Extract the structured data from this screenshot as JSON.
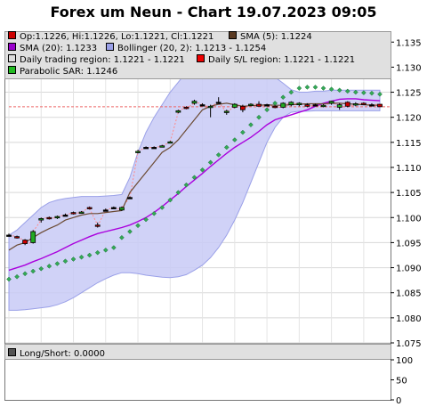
{
  "title": "Forex um Neun - Chart 19.07.2023 09:05",
  "legend": [
    {
      "label": "Op:1.1226, Hi:1.1226, Lo:1.1221, Cl:1.1221",
      "color": "#cc0000"
    },
    {
      "label": "SMA (5): 1.1224",
      "color": "#5a3a22"
    },
    {
      "label": "SMA (20): 1.1233",
      "color": "#9900cc"
    },
    {
      "label": "Bollinger (20, 2): 1.1213 - 1.1254",
      "color": "#9aa0e8"
    },
    {
      "label": "Daily trading region: 1.1221 - 1.1221",
      "color": "#dddddd"
    },
    {
      "label": "Daily S/L region: 1.1221 - 1.1221",
      "color": "#ee0000"
    },
    {
      "label": "Parabolic SAR: 1.1246",
      "color": "#22bb22"
    }
  ],
  "lower_panel": {
    "legend_label": "Long/Short: 0.0000",
    "legend_color": "#555555",
    "y_ticks": [
      "100",
      "50",
      "0"
    ],
    "ylim": [
      0,
      100
    ],
    "value": 0
  },
  "chart_data": {
    "type": "candlestick",
    "title": "Forex um Neun - Chart 19.07.2023 09:05",
    "ylim": [
      1.075,
      1.137
    ],
    "y_ticks": [
      "1.135",
      "1.130",
      "1.125",
      "1.120",
      "1.115",
      "1.110",
      "1.105",
      "1.100",
      "1.095",
      "1.090",
      "1.085",
      "1.080",
      "1.075"
    ],
    "grid": true,
    "legend_placement": "top-left",
    "colors": {
      "up": "#22aa22",
      "down": "#cc0000",
      "sma5": "#6b4a33",
      "sma20": "#aa00dd",
      "bollinger_fill": "#c8caf6",
      "sar": "#33aa55"
    },
    "candles": [
      {
        "o": 1.0965,
        "h": 1.0968,
        "l": 1.0962,
        "c": 1.0965
      },
      {
        "o": 1.0962,
        "h": 1.0964,
        "l": 1.0958,
        "c": 1.096
      },
      {
        "o": 1.0955,
        "h": 1.0957,
        "l": 1.0945,
        "c": 1.0948
      },
      {
        "o": 1.095,
        "h": 1.0975,
        "l": 1.0948,
        "c": 1.0972
      },
      {
        "o": 1.0995,
        "h": 1.1,
        "l": 1.099,
        "c": 1.0998
      },
      {
        "o": 1.1,
        "h": 1.1002,
        "l": 1.0996,
        "c": 1.0998
      },
      {
        "o": 1.1,
        "h": 1.1004,
        "l": 1.0997,
        "c": 1.1002
      },
      {
        "o": 1.1005,
        "h": 1.1008,
        "l": 1.1003,
        "c": 1.1005
      },
      {
        "o": 1.101,
        "h": 1.1012,
        "l": 1.1006,
        "c": 1.1008
      },
      {
        "o": 1.101,
        "h": 1.1013,
        "l": 1.1008,
        "c": 1.1011
      },
      {
        "o": 1.102,
        "h": 1.1022,
        "l": 1.1016,
        "c": 1.1018
      },
      {
        "o": 1.0985,
        "h": 1.099,
        "l": 1.098,
        "c": 1.0983
      },
      {
        "o": 1.1015,
        "h": 1.1018,
        "l": 1.1012,
        "c": 1.1015
      },
      {
        "o": 1.102,
        "h": 1.1022,
        "l": 1.1017,
        "c": 1.102
      },
      {
        "o": 1.1015,
        "h": 1.1022,
        "l": 1.1013,
        "c": 1.102
      },
      {
        "o": 1.104,
        "h": 1.1042,
        "l": 1.1038,
        "c": 1.104
      },
      {
        "o": 1.113,
        "h": 1.1135,
        "l": 1.1128,
        "c": 1.1132
      },
      {
        "o": 1.114,
        "h": 1.1142,
        "l": 1.1138,
        "c": 1.114
      },
      {
        "o": 1.114,
        "h": 1.1142,
        "l": 1.1138,
        "c": 1.114
      },
      {
        "o": 1.1142,
        "h": 1.1145,
        "l": 1.114,
        "c": 1.1143
      },
      {
        "o": 1.115,
        "h": 1.1153,
        "l": 1.1148,
        "c": 1.1151
      },
      {
        "o": 1.121,
        "h": 1.1215,
        "l": 1.1208,
        "c": 1.1213
      },
      {
        "o": 1.122,
        "h": 1.1222,
        "l": 1.1216,
        "c": 1.1218
      },
      {
        "o": 1.1228,
        "h": 1.1235,
        "l": 1.1225,
        "c": 1.1232
      },
      {
        "o": 1.1225,
        "h": 1.1228,
        "l": 1.1222,
        "c": 1.1225
      },
      {
        "o": 1.122,
        "h": 1.1225,
        "l": 1.12,
        "c": 1.1222
      },
      {
        "o": 1.123,
        "h": 1.124,
        "l": 1.1228,
        "c": 1.123
      },
      {
        "o": 1.121,
        "h": 1.1215,
        "l": 1.1205,
        "c": 1.1212
      },
      {
        "o": 1.122,
        "h": 1.1228,
        "l": 1.1218,
        "c": 1.1226
      },
      {
        "o": 1.1222,
        "h": 1.1225,
        "l": 1.121,
        "c": 1.1215
      },
      {
        "o": 1.1225,
        "h": 1.1228,
        "l": 1.1222,
        "c": 1.1226
      },
      {
        "o": 1.1226,
        "h": 1.1232,
        "l": 1.1222,
        "c": 1.1222
      },
      {
        "o": 1.1225,
        "h": 1.1227,
        "l": 1.1222,
        "c": 1.1225
      },
      {
        "o": 1.1222,
        "h": 1.1225,
        "l": 1.1218,
        "c": 1.122
      },
      {
        "o": 1.122,
        "h": 1.123,
        "l": 1.1218,
        "c": 1.1228
      },
      {
        "o": 1.1225,
        "h": 1.1232,
        "l": 1.1222,
        "c": 1.123
      },
      {
        "o": 1.1225,
        "h": 1.123,
        "l": 1.1222,
        "c": 1.1228
      },
      {
        "o": 1.1225,
        "h": 1.1228,
        "l": 1.122,
        "c": 1.1222
      },
      {
        "o": 1.1225,
        "h": 1.1227,
        "l": 1.1222,
        "c": 1.1225
      },
      {
        "o": 1.1222,
        "h": 1.1226,
        "l": 1.122,
        "c": 1.1224
      },
      {
        "o": 1.1228,
        "h": 1.1233,
        "l": 1.1225,
        "c": 1.1232
      },
      {
        "o": 1.122,
        "h": 1.1228,
        "l": 1.1215,
        "c": 1.1225
      },
      {
        "o": 1.123,
        "h": 1.1232,
        "l": 1.122,
        "c": 1.1222
      },
      {
        "o": 1.1225,
        "h": 1.123,
        "l": 1.1222,
        "c": 1.1227
      },
      {
        "o": 1.1228,
        "h": 1.123,
        "l": 1.1225,
        "c": 1.1226
      },
      {
        "o": 1.1225,
        "h": 1.1228,
        "l": 1.1222,
        "c": 1.1225
      },
      {
        "o": 1.1226,
        "h": 1.1226,
        "l": 1.1221,
        "c": 1.1221
      }
    ],
    "sma5": [
      1.0935,
      1.0945,
      1.095,
      1.096,
      1.097,
      1.0978,
      1.0985,
      1.0995,
      1.1,
      1.1005,
      1.1008,
      1.1008,
      1.101,
      1.1012,
      1.1014,
      1.105,
      1.107,
      1.109,
      1.111,
      1.113,
      1.114,
      1.1155,
      1.1175,
      1.1195,
      1.1215,
      1.1222,
      1.1226,
      1.1228,
      1.1225,
      1.1222,
      1.1223,
      1.1224,
      1.1225,
      1.1224,
      1.1224,
      1.1225,
      1.1226,
      1.1227,
      1.1227,
      1.1227,
      1.1228,
      1.1228,
      1.1227,
      1.1226,
      1.1225,
      1.1224,
      1.1224
    ],
    "sma20": [
      1.0895,
      1.09,
      1.0905,
      1.0912,
      1.0918,
      1.0925,
      1.0932,
      1.094,
      1.0948,
      1.0955,
      1.0962,
      1.0968,
      1.0972,
      1.0976,
      1.098,
      1.0985,
      1.0992,
      1.1,
      1.101,
      1.1022,
      1.1035,
      1.1048,
      1.1062,
      1.1075,
      1.1088,
      1.1102,
      1.1115,
      1.1128,
      1.114,
      1.115,
      1.116,
      1.1172,
      1.1185,
      1.1195,
      1.12,
      1.1205,
      1.121,
      1.1215,
      1.1222,
      1.1228,
      1.1232,
      1.1236,
      1.1237,
      1.1237,
      1.1235,
      1.1234,
      1.1233
    ],
    "bollinger_upper": [
      1.0965,
      1.0975,
      1.099,
      1.1005,
      1.102,
      1.103,
      1.1035,
      1.1038,
      1.104,
      1.1042,
      1.1042,
      1.1042,
      1.1043,
      1.1044,
      1.1046,
      1.108,
      1.113,
      1.117,
      1.12,
      1.1225,
      1.125,
      1.127,
      1.129,
      1.1305,
      1.1315,
      1.132,
      1.1322,
      1.1322,
      1.1318,
      1.1312,
      1.1305,
      1.1298,
      1.129,
      1.128,
      1.1268,
      1.1255,
      1.125,
      1.125,
      1.1252,
      1.1252,
      1.1254,
      1.1254,
      1.1254,
      1.1254,
      1.1254,
      1.1254,
      1.1254
    ],
    "bollinger_lower": [
      1.0815,
      1.0815,
      1.0816,
      1.0818,
      1.082,
      1.0822,
      1.0826,
      1.0832,
      1.084,
      1.085,
      1.086,
      1.087,
      1.0878,
      1.0885,
      1.089,
      1.089,
      1.0888,
      1.0885,
      1.0883,
      1.0881,
      1.088,
      1.0882,
      1.0886,
      1.0895,
      1.0905,
      1.092,
      1.094,
      1.0965,
      1.0995,
      1.103,
      1.107,
      1.111,
      1.115,
      1.118,
      1.12,
      1.121,
      1.1212,
      1.1212,
      1.1213,
      1.1213,
      1.1213,
      1.1213,
      1.1213,
      1.1213,
      1.1213,
      1.1213,
      1.1213
    ],
    "sar": [
      1.0877,
      1.0882,
      1.0888,
      1.0893,
      1.0898,
      1.0903,
      1.0908,
      1.0913,
      1.0917,
      1.0921,
      1.0925,
      1.093,
      1.0935,
      1.094,
      1.096,
      1.0972,
      1.0984,
      1.0996,
      1.1008,
      1.102,
      1.1035,
      1.105,
      1.1065,
      1.108,
      1.1095,
      1.111,
      1.1125,
      1.114,
      1.1155,
      1.117,
      1.1185,
      1.12,
      1.1215,
      1.1228,
      1.124,
      1.125,
      1.1258,
      1.126,
      1.126,
      1.1258,
      1.1256,
      1.1254,
      1.1252,
      1.125,
      1.1249,
      1.1248,
      1.1246
    ],
    "sl_region": [
      1.1221,
      1.1221
    ]
  }
}
